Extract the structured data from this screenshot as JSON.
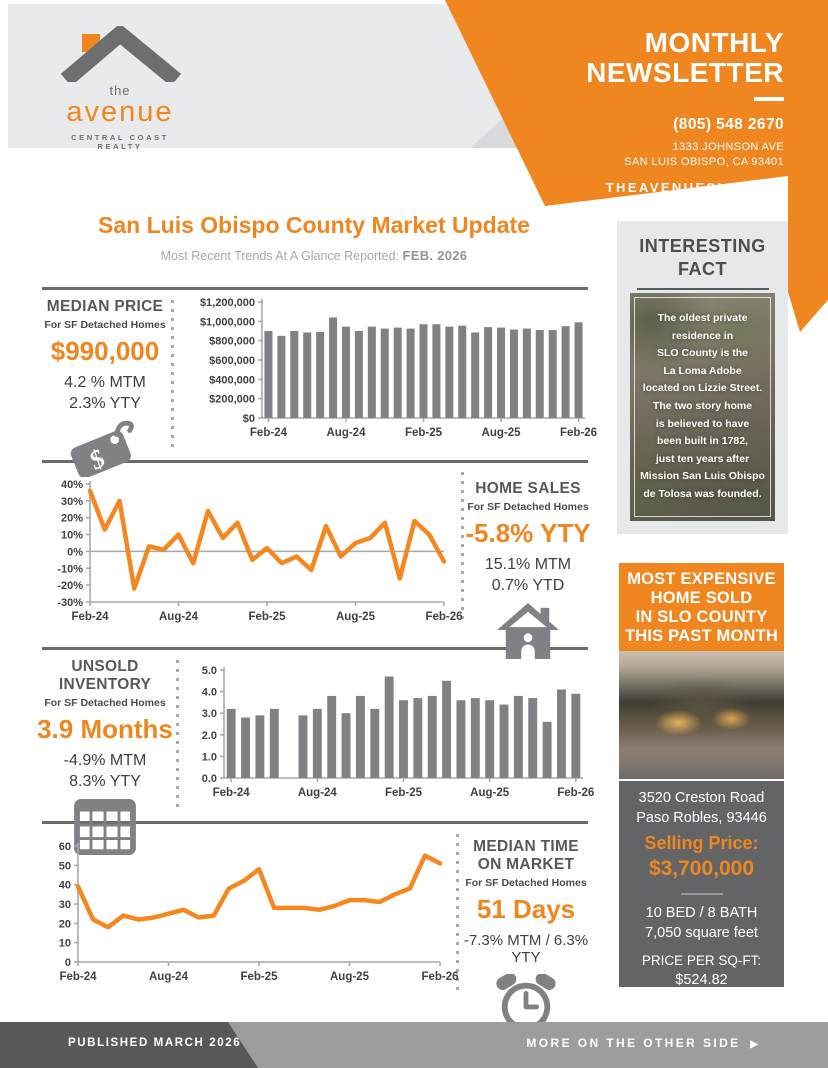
{
  "colors": {
    "accent_orange": "#F0861F",
    "line_orange": "#F4871F",
    "bar_gray": "#808184",
    "dark_gray_text": "#58595B",
    "axis_gray": "#A7A9AC",
    "footer_dark": "#57585A",
    "footer_light": "#9C9DA0"
  },
  "header": {
    "brand": {
      "the": "the",
      "name": "avenue",
      "tagline": "CENTRAL COAST REALTY"
    },
    "title_line1": "MONTHLY",
    "title_line2": "NEWSLETTER",
    "phone": "(805) 548 2670",
    "address1": "1333 JOHNSON AVE",
    "address2": "SAN LUIS OBISPO, CA 93401",
    "website": "THEAVENUESLO.COM"
  },
  "main": {
    "title": "San Luis Obispo County Market Update",
    "subtitle": "Most Recent Trends At A Glance Reported:",
    "report_month": "FEB. 2026"
  },
  "stats": {
    "median_price": {
      "title": "MEDIAN PRICE",
      "subtitle": "For SF Detached Homes",
      "value": "$990,000",
      "line1": "4.2 % MTM",
      "line2": "2.3% YTY"
    },
    "home_sales": {
      "title": "HOME SALES",
      "subtitle": "For SF Detached Homes",
      "value": "-5.8% YTY",
      "line1": "15.1% MTM",
      "line2": "0.7% YTD"
    },
    "unsold_inventory": {
      "title": "UNSOLD INVENTORY",
      "subtitle": "For SF Detached Homes",
      "value": "3.9 Months",
      "line1": "-4.9% MTM",
      "line2": "8.3% YTY"
    },
    "median_time": {
      "title1": "MEDIAN TIME",
      "title2": "ON MARKET",
      "subtitle": "For SF Detached Homes",
      "value": "51 Days",
      "line1": "-7.3% MTM / 6.3% YTY"
    }
  },
  "chart_data": [
    {
      "type": "bar",
      "name": "median-price",
      "categories": [
        "Feb-24",
        "Mar-24",
        "Apr-24",
        "May-24",
        "Jun-24",
        "Jul-24",
        "Aug-24",
        "Sep-24",
        "Oct-24",
        "Nov-24",
        "Dec-24",
        "Jan-25",
        "Feb-25",
        "Mar-25",
        "Apr-25",
        "May-25",
        "Jun-25",
        "Jul-25",
        "Aug-25",
        "Sep-25",
        "Oct-25",
        "Nov-25",
        "Dec-25",
        "Jan-26",
        "Feb-26"
      ],
      "values": [
        900000,
        850000,
        900000,
        885000,
        890000,
        1040000,
        945000,
        900000,
        945000,
        925000,
        935000,
        925000,
        970000,
        970000,
        945000,
        955000,
        885000,
        940000,
        935000,
        915000,
        925000,
        910000,
        910000,
        950000,
        990000
      ],
      "ylim": [
        0,
        1200000
      ],
      "y_ticks": [
        [
          0,
          "$0"
        ],
        [
          200000,
          "$200,000"
        ],
        [
          400000,
          "$400,000"
        ],
        [
          600000,
          "$600,000"
        ],
        [
          800000,
          "$800,000"
        ],
        [
          1000000,
          "$1,000,000"
        ],
        [
          1200000,
          "$1,200,000"
        ]
      ],
      "x_ticks": [
        [
          0,
          "Feb-24"
        ],
        [
          6,
          "Aug-24"
        ],
        [
          12,
          "Feb-25"
        ],
        [
          18,
          "Aug-25"
        ],
        [
          24,
          "Feb-26"
        ]
      ],
      "title": "",
      "xlabel": "",
      "ylabel": "",
      "color": "#808184"
    },
    {
      "type": "line",
      "name": "home-sales-pct-change",
      "categories": [
        "Feb-24",
        "Mar-24",
        "Apr-24",
        "May-24",
        "Jun-24",
        "Jul-24",
        "Aug-24",
        "Sep-24",
        "Oct-24",
        "Nov-24",
        "Dec-24",
        "Jan-25",
        "Feb-25",
        "Mar-25",
        "Apr-25",
        "May-25",
        "Jun-25",
        "Jul-25",
        "Aug-25",
        "Sep-25",
        "Oct-25",
        "Nov-25",
        "Dec-25",
        "Jan-26",
        "Feb-26"
      ],
      "values": [
        36,
        13,
        30,
        -22,
        3,
        1,
        10,
        -7,
        24,
        8,
        17,
        -5,
        2,
        -7,
        -3,
        -11,
        15,
        -3,
        5,
        8,
        17,
        -16,
        18,
        10,
        -6
      ],
      "ylim": [
        -30,
        40
      ],
      "zero_line": true,
      "y_ticks": [
        [
          -30,
          "-30%"
        ],
        [
          -20,
          "-20%"
        ],
        [
          -10,
          "-10%"
        ],
        [
          0,
          "0%"
        ],
        [
          10,
          "10%"
        ],
        [
          20,
          "20%"
        ],
        [
          30,
          "30%"
        ],
        [
          40,
          "40%"
        ]
      ],
      "x_ticks": [
        [
          0,
          "Feb-24"
        ],
        [
          6,
          "Aug-24"
        ],
        [
          12,
          "Feb-25"
        ],
        [
          18,
          "Aug-25"
        ],
        [
          24,
          "Feb-26"
        ]
      ],
      "title": "",
      "xlabel": "",
      "ylabel": "",
      "color": "#F4871F"
    },
    {
      "type": "bar",
      "name": "unsold-inventory-months",
      "categories": [
        "Feb-24",
        "Mar-24",
        "Apr-24",
        "May-24",
        "Jun-24",
        "Jul-24",
        "Aug-24",
        "Sep-24",
        "Oct-24",
        "Nov-24",
        "Dec-24",
        "Jan-25",
        "Feb-25",
        "Mar-25",
        "Apr-25",
        "May-25",
        "Jun-25",
        "Jul-25",
        "Aug-25",
        "Sep-25",
        "Oct-25",
        "Nov-25",
        "Dec-25",
        "Jan-26",
        "Feb-26"
      ],
      "values": [
        3.2,
        2.8,
        2.9,
        3.2,
        null,
        2.9,
        3.2,
        3.8,
        3.0,
        3.8,
        3.2,
        4.7,
        3.6,
        3.7,
        3.8,
        4.5,
        3.6,
        3.7,
        3.6,
        3.4,
        3.8,
        3.7,
        2.6,
        4.1,
        3.9
      ],
      "ylim": [
        0,
        5
      ],
      "y_ticks": [
        [
          0,
          "0.0"
        ],
        [
          1,
          "1.0"
        ],
        [
          2,
          "2.0"
        ],
        [
          3,
          "3.0"
        ],
        [
          4,
          "4.0"
        ],
        [
          5,
          "5.0"
        ]
      ],
      "x_ticks": [
        [
          0,
          "Feb-24"
        ],
        [
          6,
          "Aug-24"
        ],
        [
          12,
          "Feb-25"
        ],
        [
          18,
          "Aug-25"
        ],
        [
          24,
          "Feb-26"
        ]
      ],
      "title": "",
      "xlabel": "",
      "ylabel": "",
      "color": "#808184"
    },
    {
      "type": "line",
      "name": "median-days-on-market",
      "categories": [
        "Feb-24",
        "Mar-24",
        "Apr-24",
        "May-24",
        "Jun-24",
        "Jul-24",
        "Aug-24",
        "Sep-24",
        "Oct-24",
        "Nov-24",
        "Dec-24",
        "Jan-25",
        "Feb-25",
        "Mar-25",
        "Apr-25",
        "May-25",
        "Jun-25",
        "Jul-25",
        "Aug-25",
        "Sep-25",
        "Oct-25",
        "Nov-25",
        "Dec-25",
        "Jan-26",
        "Feb-26"
      ],
      "values": [
        39,
        22,
        18,
        24,
        22,
        23,
        25,
        27,
        23,
        24,
        38,
        42,
        48,
        28,
        28,
        28,
        27,
        29,
        32,
        32,
        31,
        35,
        38,
        55,
        51
      ],
      "ylim": [
        0,
        60
      ],
      "y_ticks": [
        [
          0,
          "0"
        ],
        [
          10,
          "10"
        ],
        [
          20,
          "20"
        ],
        [
          30,
          "30"
        ],
        [
          40,
          "40"
        ],
        [
          50,
          "50"
        ],
        [
          60,
          "60"
        ]
      ],
      "x_ticks": [
        [
          0,
          "Feb-24"
        ],
        [
          6,
          "Aug-24"
        ],
        [
          12,
          "Feb-25"
        ],
        [
          18,
          "Aug-25"
        ],
        [
          24,
          "Feb-26"
        ]
      ],
      "title": "",
      "xlabel": "",
      "ylabel": "",
      "color": "#F4871F"
    }
  ],
  "sidebar": {
    "fact": {
      "title1": "INTERESTING",
      "title2": "FACT",
      "lines": [
        "The oldest private",
        "residence in",
        "SLO County is the",
        "La Loma Adobe",
        "located on Lizzie Street.",
        "The two story home",
        "is believed to have",
        "been built in 1782,",
        "just ten years after",
        "Mission San Luis Obispo",
        "de Tolosa was founded."
      ]
    },
    "expensive": {
      "header_lines": [
        "MOST EXPENSIVE",
        "HOME SOLD",
        "IN SLO COUNTY",
        "THIS PAST MONTH"
      ],
      "address1": "3520 Creston Road",
      "address2": "Paso Robles, 93446",
      "price_label": "Selling Price:",
      "price": "$3,700,000",
      "beds_baths": "10 BED / 8 BATH",
      "sqft": "7,050 square feet",
      "ppsf_label": "PRICE PER SQ-FT:",
      "ppsf": "$524.82"
    }
  },
  "footer": {
    "left": "PUBLISHED MARCH 2026",
    "right": "MORE ON THE OTHER SIDE",
    "arrow": "▶"
  }
}
